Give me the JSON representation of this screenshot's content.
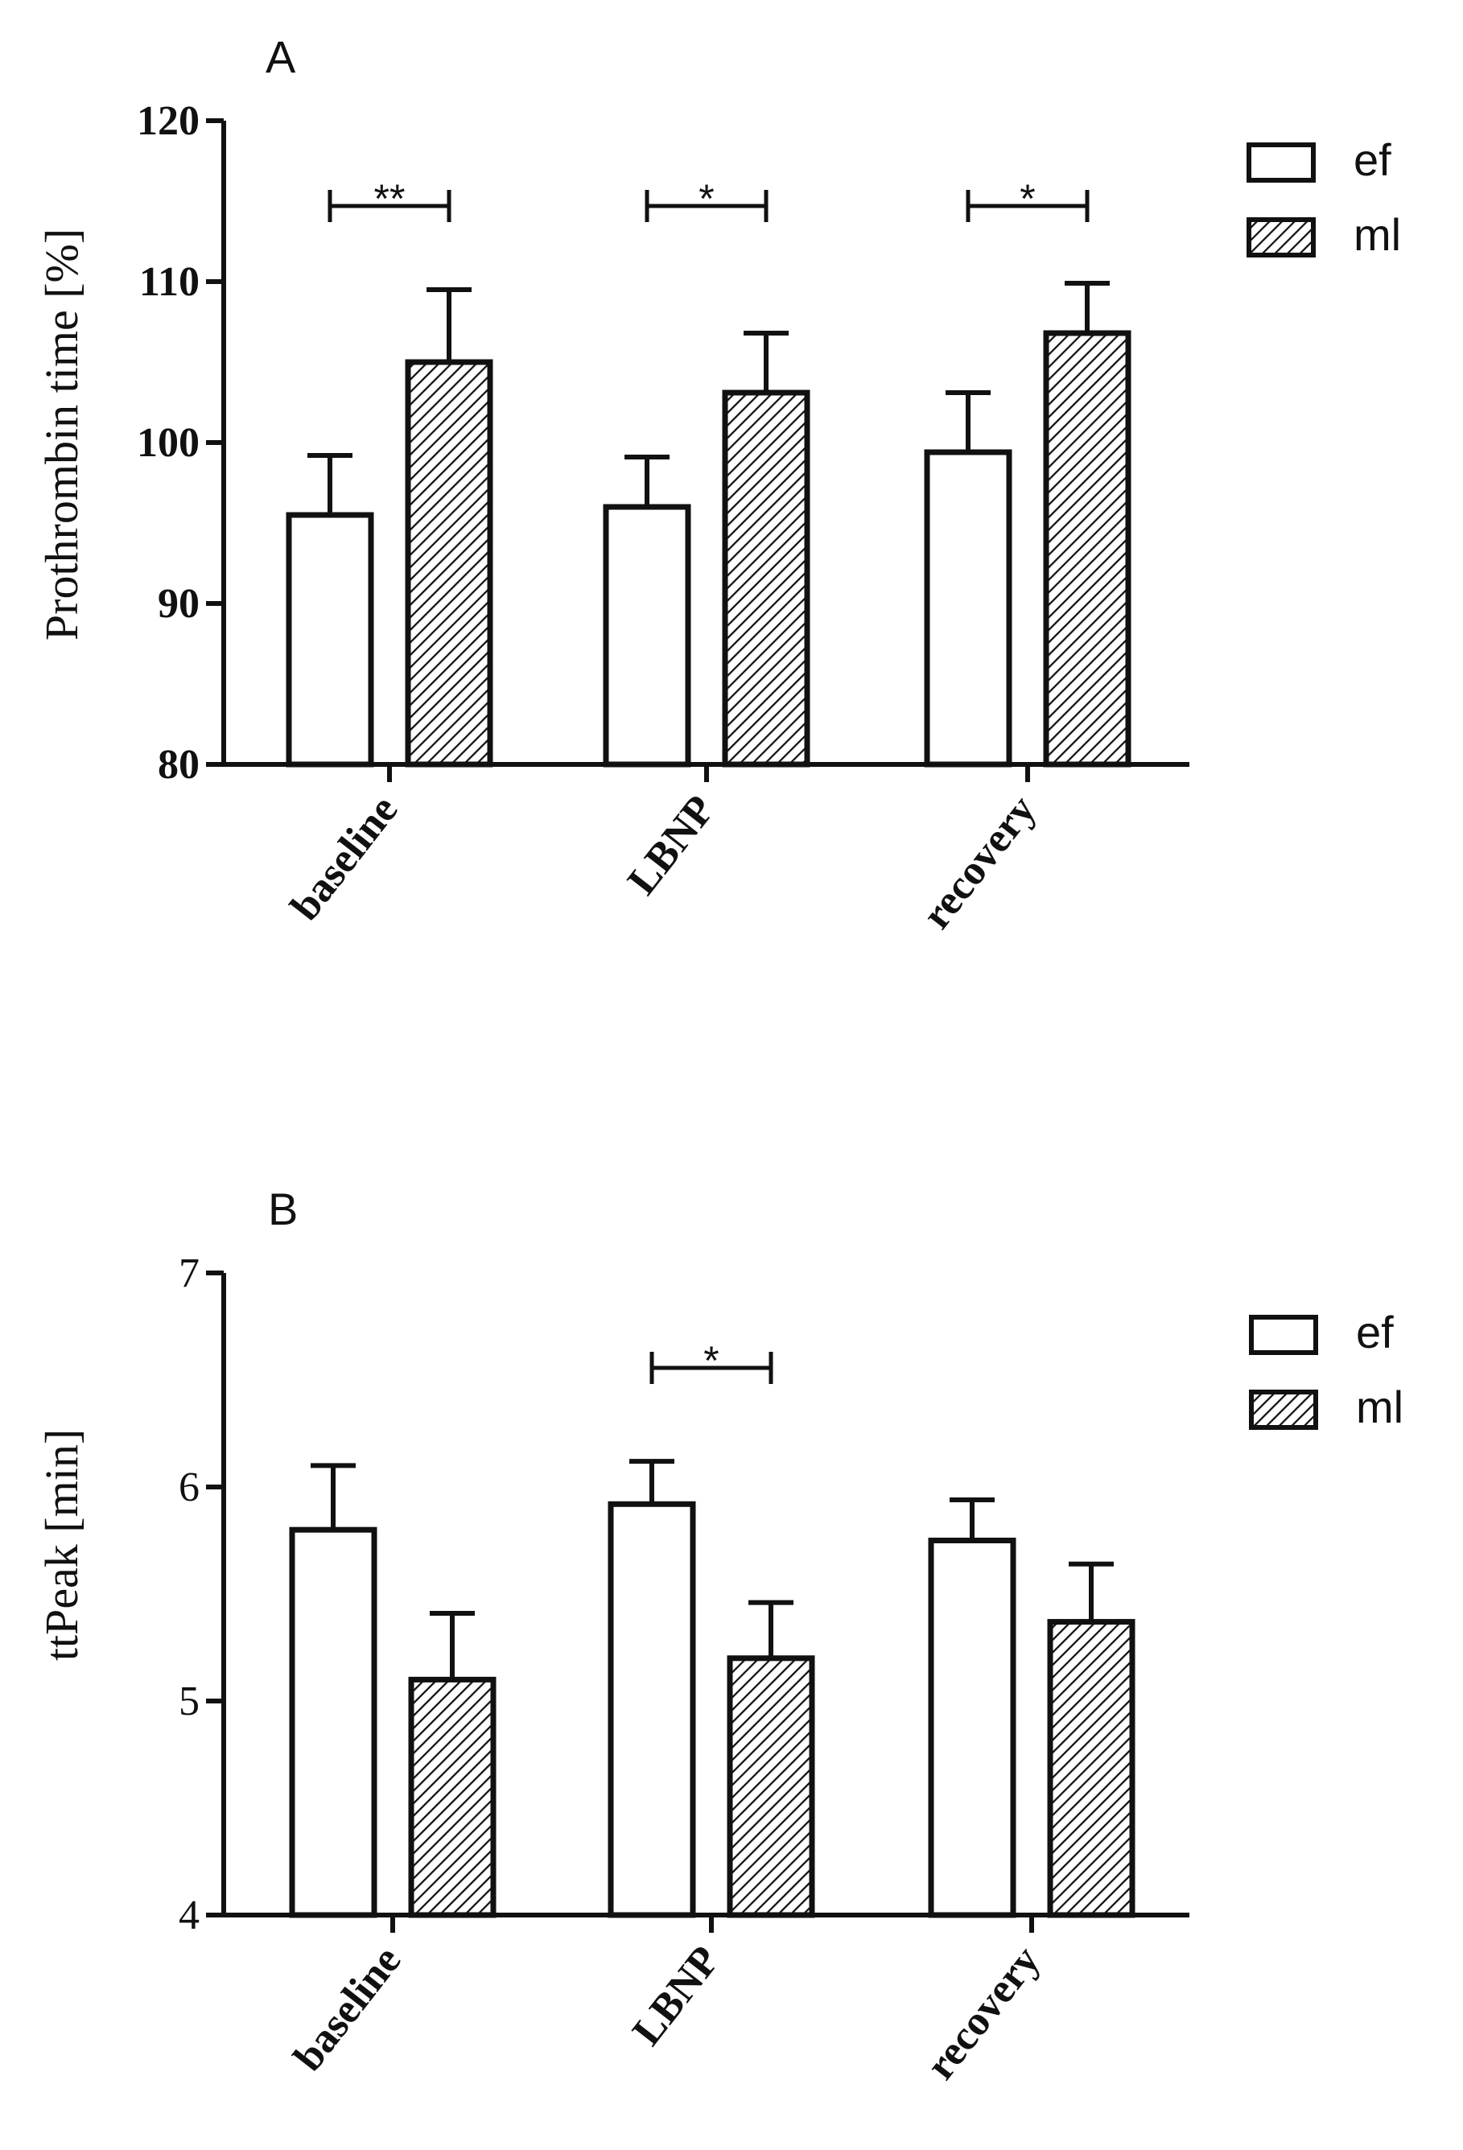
{
  "chart_data": [
    {
      "panel": "A",
      "type": "bar",
      "title": "",
      "ylabel": "Prothrombin time [%]",
      "xlabel": "",
      "ylim": [
        80,
        120
      ],
      "yticks": [
        "80",
        "90",
        "100",
        "110",
        "120"
      ],
      "ytick_values": [
        80,
        90,
        100,
        110,
        120
      ],
      "categories": [
        "baseline",
        "LBNP",
        "recovery"
      ],
      "series": [
        {
          "name": "ef",
          "pattern": "open",
          "values": [
            95.5,
            96.0,
            99.4
          ],
          "errors": [
            3.7,
            3.1,
            3.7
          ]
        },
        {
          "name": "ml",
          "pattern": "hatched",
          "values": [
            105.0,
            103.1,
            106.8
          ],
          "errors": [
            4.5,
            3.7,
            3.1
          ]
        }
      ],
      "significance": [
        "**",
        "*",
        "*"
      ]
    },
    {
      "panel": "B",
      "type": "bar",
      "title": "",
      "ylabel": "ttPeak [min]",
      "xlabel": "",
      "ylim": [
        4,
        7
      ],
      "yticks": [
        "4",
        "5",
        "6",
        "7"
      ],
      "ytick_values": [
        4,
        5,
        6,
        7
      ],
      "categories": [
        "baseline",
        "LBNP",
        "recovery"
      ],
      "series": [
        {
          "name": "ef",
          "pattern": "open",
          "values": [
            5.8,
            5.92,
            5.75
          ],
          "errors": [
            0.3,
            0.2,
            0.19
          ]
        },
        {
          "name": "ml",
          "pattern": "hatched",
          "values": [
            5.1,
            5.2,
            5.37
          ],
          "errors": [
            0.31,
            0.26,
            0.27
          ]
        }
      ],
      "significance": [
        "",
        "*",
        ""
      ]
    }
  ]
}
